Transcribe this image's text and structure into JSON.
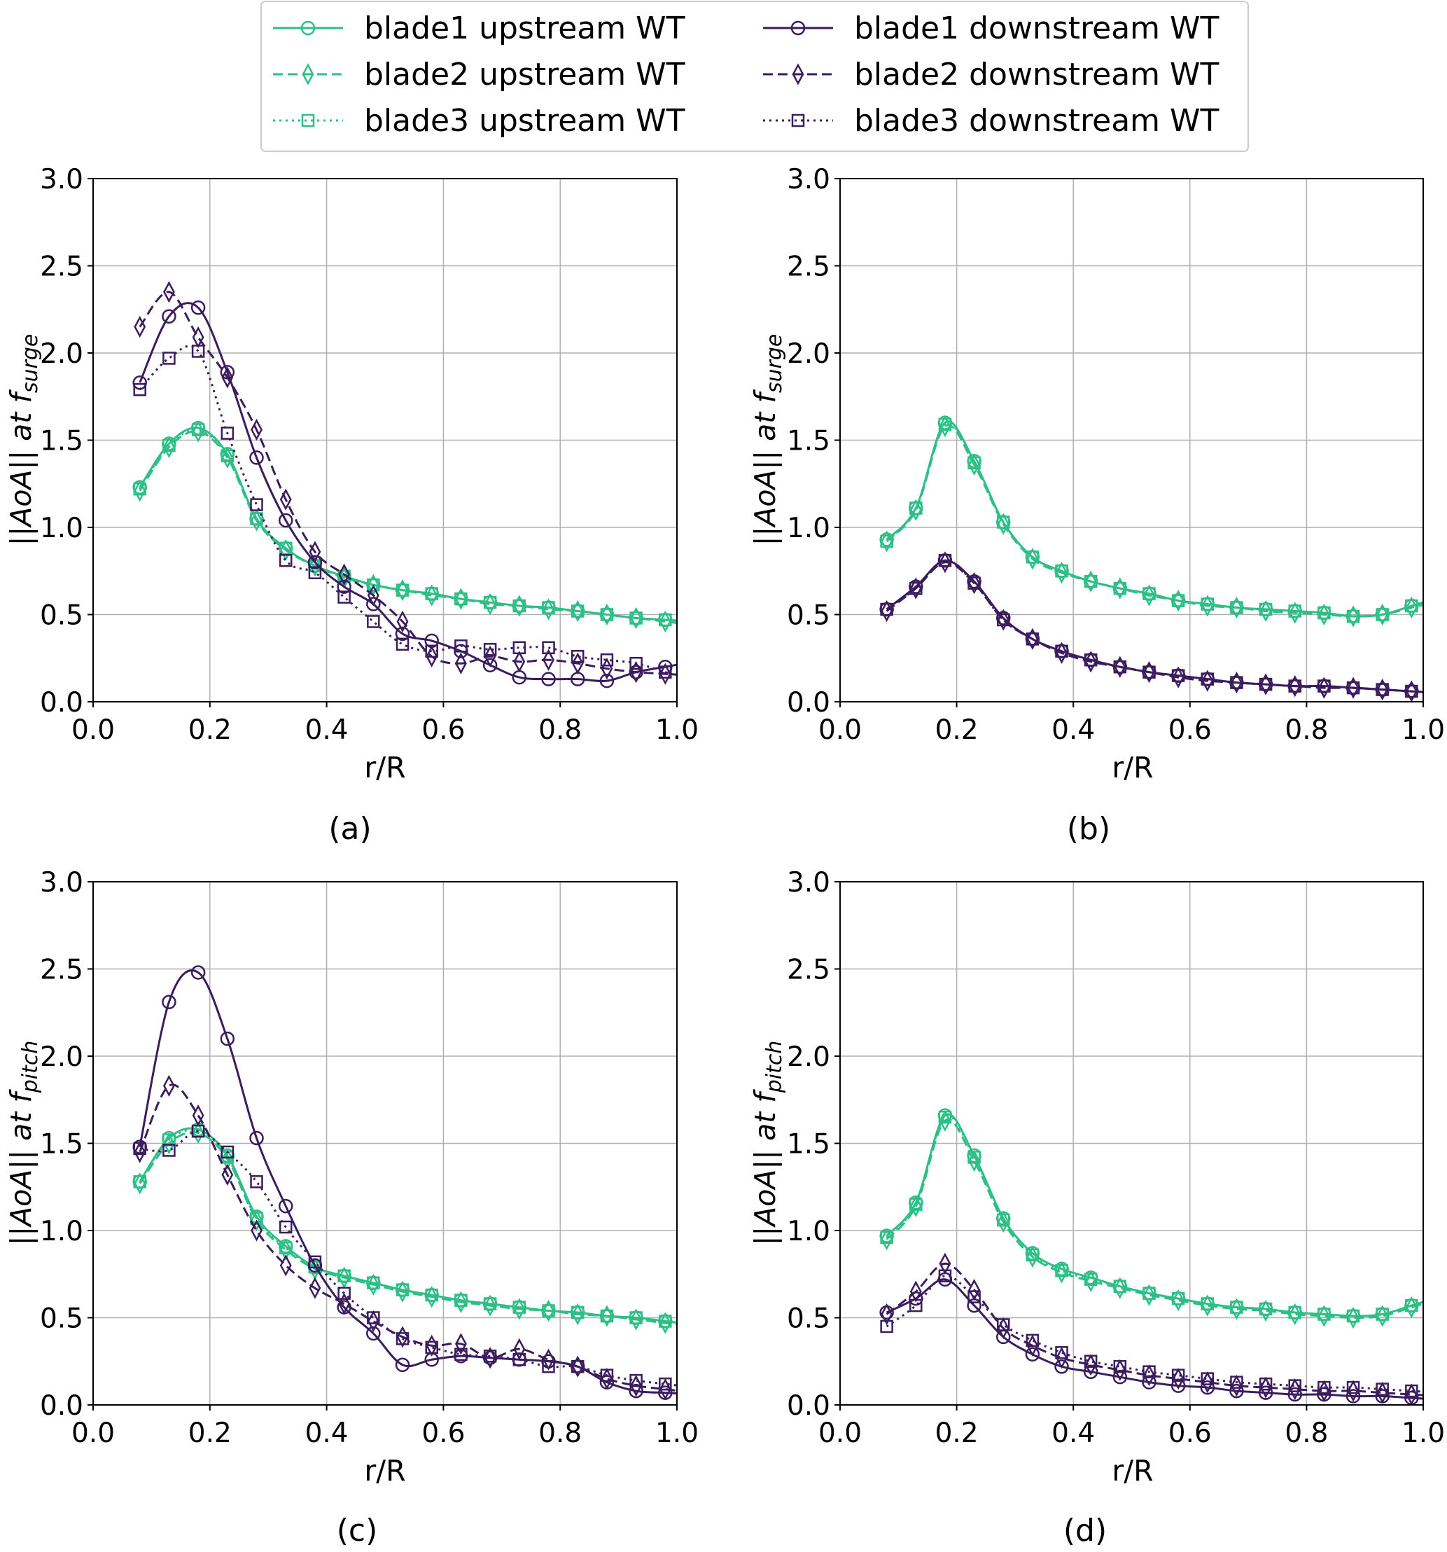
{
  "figure": {
    "colors": {
      "upstream": "#2ebf87",
      "downstream": "#3b1c5e"
    },
    "legend": {
      "entries": [
        {
          "label": "blade1 upstream WT",
          "marker": "circle",
          "style": "solid",
          "group": "upstream"
        },
        {
          "label": "blade2 upstream WT",
          "marker": "diamond",
          "style": "dashed",
          "group": "upstream"
        },
        {
          "label": "blade3 upstream WT",
          "marker": "square",
          "style": "dotted",
          "group": "upstream"
        },
        {
          "label": "blade1 downstream WT",
          "marker": "circle",
          "style": "solid",
          "group": "downstream"
        },
        {
          "label": "blade2 downstream WT",
          "marker": "diamond",
          "style": "dashed",
          "group": "downstream"
        },
        {
          "label": "blade3 downstream WT",
          "marker": "square",
          "style": "dotted",
          "group": "downstream"
        }
      ]
    },
    "panels": [
      {
        "caption": "(a)",
        "xlabel": "r/R",
        "ylabel_main": "||AoA|| at f",
        "ylabel_sub": "surge"
      },
      {
        "caption": "(b)",
        "xlabel": "r/R",
        "ylabel_main": "||AoA|| at f",
        "ylabel_sub": "surge"
      },
      {
        "caption": "(c)",
        "xlabel": "r/R",
        "ylabel_main": "||AoA|| at f",
        "ylabel_sub": "pitch"
      },
      {
        "caption": "(d)",
        "xlabel": "r/R",
        "ylabel_main": "||AoA|| at f",
        "ylabel_sub": "pitch"
      }
    ]
  },
  "chart_data": [
    {
      "type": "line",
      "xlabel": "r/R",
      "ylabel": "||AoA|| at f_surge",
      "xlim": [
        0.0,
        1.0
      ],
      "ylim": [
        0.0,
        3.0
      ],
      "xticks": [
        "0.0",
        "0.2",
        "0.4",
        "0.6",
        "0.8",
        "1.0"
      ],
      "yticks": [
        "0.0",
        "0.5",
        "1.0",
        "1.5",
        "2.0",
        "2.5",
        "3.0"
      ],
      "grid": true,
      "x": [
        0.08,
        0.13,
        0.18,
        0.23,
        0.28,
        0.33,
        0.38,
        0.43,
        0.48,
        0.53,
        0.58,
        0.63,
        0.68,
        0.73,
        0.78,
        0.83,
        0.88,
        0.93,
        0.98
      ],
      "series": [
        {
          "name": "blade1 upstream WT",
          "values": [
            1.23,
            1.48,
            1.57,
            1.42,
            1.05,
            0.88,
            0.78,
            0.72,
            0.67,
            0.64,
            0.62,
            0.59,
            0.57,
            0.55,
            0.54,
            0.52,
            0.5,
            0.48,
            0.47
          ]
        },
        {
          "name": "blade2 upstream WT",
          "values": [
            1.21,
            1.46,
            1.55,
            1.4,
            1.04,
            0.87,
            0.78,
            0.71,
            0.67,
            0.64,
            0.61,
            0.59,
            0.56,
            0.55,
            0.53,
            0.52,
            0.5,
            0.48,
            0.46
          ]
        },
        {
          "name": "blade3 upstream WT",
          "values": [
            1.22,
            1.47,
            1.56,
            1.41,
            1.05,
            0.88,
            0.78,
            0.72,
            0.67,
            0.64,
            0.62,
            0.59,
            0.57,
            0.55,
            0.54,
            0.52,
            0.5,
            0.48,
            0.47
          ]
        },
        {
          "name": "blade1 downstream WT",
          "values": [
            1.83,
            2.21,
            2.26,
            1.89,
            1.4,
            1.04,
            0.8,
            0.66,
            0.56,
            0.39,
            0.35,
            0.29,
            0.21,
            0.14,
            0.13,
            0.13,
            0.12,
            0.17,
            0.2
          ]
        },
        {
          "name": "blade2 downstream WT",
          "values": [
            2.15,
            2.35,
            2.09,
            1.86,
            1.56,
            1.16,
            0.86,
            0.73,
            0.61,
            0.46,
            0.26,
            0.22,
            0.26,
            0.23,
            0.24,
            0.22,
            0.19,
            0.17,
            0.16
          ]
        },
        {
          "name": "blade3 downstream WT",
          "values": [
            1.79,
            1.97,
            2.01,
            1.54,
            1.13,
            0.81,
            0.74,
            0.6,
            0.46,
            0.33,
            0.29,
            0.32,
            0.3,
            0.31,
            0.31,
            0.26,
            0.24,
            0.22,
            0.17
          ]
        }
      ]
    },
    {
      "type": "line",
      "xlabel": "r/R",
      "ylabel": "||AoA|| at f_surge",
      "xlim": [
        0.0,
        1.0
      ],
      "ylim": [
        0.0,
        3.0
      ],
      "xticks": [
        "0.0",
        "0.2",
        "0.4",
        "0.6",
        "0.8",
        "1.0"
      ],
      "yticks": [
        "0.0",
        "0.5",
        "1.0",
        "1.5",
        "2.0",
        "2.5",
        "3.0"
      ],
      "grid": true,
      "x": [
        0.08,
        0.13,
        0.18,
        0.23,
        0.28,
        0.33,
        0.38,
        0.43,
        0.48,
        0.53,
        0.58,
        0.63,
        0.68,
        0.73,
        0.78,
        0.83,
        0.88,
        0.93,
        0.98
      ],
      "series": [
        {
          "name": "blade1 upstream WT",
          "values": [
            0.93,
            1.11,
            1.6,
            1.38,
            1.03,
            0.83,
            0.75,
            0.69,
            0.65,
            0.62,
            0.58,
            0.56,
            0.54,
            0.53,
            0.52,
            0.51,
            0.49,
            0.5,
            0.55
          ]
        },
        {
          "name": "blade2 upstream WT",
          "values": [
            0.92,
            1.1,
            1.58,
            1.36,
            1.02,
            0.82,
            0.74,
            0.69,
            0.65,
            0.61,
            0.58,
            0.55,
            0.54,
            0.52,
            0.51,
            0.5,
            0.49,
            0.5,
            0.54
          ]
        },
        {
          "name": "blade3 upstream WT",
          "values": [
            0.92,
            1.11,
            1.59,
            1.37,
            1.03,
            0.83,
            0.75,
            0.69,
            0.65,
            0.62,
            0.58,
            0.56,
            0.54,
            0.53,
            0.52,
            0.51,
            0.49,
            0.5,
            0.55
          ]
        },
        {
          "name": "blade1 downstream WT",
          "values": [
            0.53,
            0.66,
            0.81,
            0.69,
            0.48,
            0.36,
            0.29,
            0.24,
            0.2,
            0.17,
            0.15,
            0.13,
            0.11,
            0.1,
            0.09,
            0.09,
            0.08,
            0.07,
            0.06
          ]
        },
        {
          "name": "blade2 downstream WT",
          "values": [
            0.52,
            0.65,
            0.8,
            0.68,
            0.47,
            0.36,
            0.28,
            0.23,
            0.2,
            0.17,
            0.14,
            0.12,
            0.11,
            0.1,
            0.09,
            0.08,
            0.08,
            0.07,
            0.06
          ]
        },
        {
          "name": "blade3 downstream WT",
          "values": [
            0.53,
            0.65,
            0.81,
            0.68,
            0.47,
            0.36,
            0.29,
            0.24,
            0.2,
            0.17,
            0.15,
            0.13,
            0.11,
            0.1,
            0.09,
            0.09,
            0.08,
            0.07,
            0.06
          ]
        }
      ]
    },
    {
      "type": "line",
      "xlabel": "r/R",
      "ylabel": "||AoA|| at f_pitch",
      "xlim": [
        0.0,
        1.0
      ],
      "ylim": [
        0.0,
        3.0
      ],
      "xticks": [
        "0.0",
        "0.2",
        "0.4",
        "0.6",
        "0.8",
        "1.0"
      ],
      "yticks": [
        "0.0",
        "0.5",
        "1.0",
        "1.5",
        "2.0",
        "2.5",
        "3.0"
      ],
      "grid": true,
      "x": [
        0.08,
        0.13,
        0.18,
        0.23,
        0.28,
        0.33,
        0.38,
        0.43,
        0.48,
        0.53,
        0.58,
        0.63,
        0.68,
        0.73,
        0.78,
        0.83,
        0.88,
        0.93,
        0.98
      ],
      "series": [
        {
          "name": "blade1 upstream WT",
          "values": [
            1.28,
            1.53,
            1.58,
            1.43,
            1.08,
            0.91,
            0.79,
            0.74,
            0.7,
            0.66,
            0.63,
            0.6,
            0.58,
            0.56,
            0.54,
            0.53,
            0.51,
            0.5,
            0.48
          ]
        },
        {
          "name": "blade2 upstream WT",
          "values": [
            1.27,
            1.5,
            1.56,
            1.41,
            1.06,
            0.89,
            0.78,
            0.73,
            0.69,
            0.65,
            0.62,
            0.59,
            0.57,
            0.55,
            0.54,
            0.52,
            0.51,
            0.49,
            0.47
          ]
        },
        {
          "name": "blade3 upstream WT",
          "values": [
            1.28,
            1.52,
            1.57,
            1.42,
            1.07,
            0.9,
            0.79,
            0.74,
            0.7,
            0.66,
            0.63,
            0.6,
            0.58,
            0.56,
            0.54,
            0.53,
            0.51,
            0.5,
            0.48
          ]
        },
        {
          "name": "blade1 downstream WT",
          "values": [
            1.48,
            2.31,
            2.48,
            2.1,
            1.53,
            1.14,
            0.8,
            0.56,
            0.41,
            0.23,
            0.26,
            0.28,
            0.27,
            0.26,
            0.25,
            0.22,
            0.13,
            0.08,
            0.07
          ]
        },
        {
          "name": "blade2 downstream WT",
          "values": [
            1.45,
            1.83,
            1.66,
            1.32,
            1.0,
            0.8,
            0.67,
            0.58,
            0.48,
            0.39,
            0.34,
            0.35,
            0.27,
            0.32,
            0.26,
            0.22,
            0.15,
            0.11,
            0.09
          ]
        },
        {
          "name": "blade3 downstream WT",
          "values": [
            1.47,
            1.46,
            1.57,
            1.45,
            1.28,
            1.02,
            0.82,
            0.64,
            0.5,
            0.38,
            0.33,
            0.29,
            0.28,
            0.26,
            0.22,
            0.22,
            0.17,
            0.14,
            0.12
          ]
        }
      ]
    },
    {
      "type": "line",
      "xlabel": "r/R",
      "ylabel": "||AoA|| at f_pitch",
      "xlim": [
        0.0,
        1.0
      ],
      "ylim": [
        0.0,
        3.0
      ],
      "xticks": [
        "0.0",
        "0.2",
        "0.4",
        "0.6",
        "0.8",
        "1.0"
      ],
      "yticks": [
        "0.0",
        "0.5",
        "1.0",
        "1.5",
        "2.0",
        "2.5",
        "3.0"
      ],
      "grid": true,
      "x": [
        0.08,
        0.13,
        0.18,
        0.23,
        0.28,
        0.33,
        0.38,
        0.43,
        0.48,
        0.53,
        0.58,
        0.63,
        0.68,
        0.73,
        0.78,
        0.83,
        0.88,
        0.93,
        0.98
      ],
      "series": [
        {
          "name": "blade1 upstream WT",
          "values": [
            0.97,
            1.16,
            1.66,
            1.43,
            1.07,
            0.87,
            0.78,
            0.73,
            0.68,
            0.64,
            0.61,
            0.58,
            0.56,
            0.55,
            0.53,
            0.52,
            0.51,
            0.52,
            0.57
          ]
        },
        {
          "name": "blade2 upstream WT",
          "values": [
            0.95,
            1.14,
            1.63,
            1.4,
            1.05,
            0.85,
            0.76,
            0.71,
            0.67,
            0.63,
            0.6,
            0.57,
            0.55,
            0.54,
            0.52,
            0.51,
            0.5,
            0.51,
            0.56
          ]
        },
        {
          "name": "blade3 upstream WT",
          "values": [
            0.96,
            1.15,
            1.65,
            1.42,
            1.06,
            0.86,
            0.77,
            0.72,
            0.68,
            0.64,
            0.61,
            0.58,
            0.56,
            0.55,
            0.53,
            0.52,
            0.51,
            0.52,
            0.57
          ]
        },
        {
          "name": "blade1 downstream WT",
          "values": [
            0.53,
            0.61,
            0.72,
            0.57,
            0.39,
            0.29,
            0.22,
            0.19,
            0.16,
            0.13,
            0.11,
            0.1,
            0.08,
            0.07,
            0.06,
            0.06,
            0.05,
            0.05,
            0.04
          ]
        },
        {
          "name": "blade2 downstream WT",
          "values": [
            0.52,
            0.65,
            0.81,
            0.66,
            0.44,
            0.34,
            0.27,
            0.23,
            0.2,
            0.17,
            0.15,
            0.13,
            0.11,
            0.1,
            0.09,
            0.08,
            0.08,
            0.07,
            0.06
          ]
        },
        {
          "name": "blade3 downstream WT",
          "values": [
            0.45,
            0.57,
            0.74,
            0.62,
            0.46,
            0.37,
            0.3,
            0.25,
            0.22,
            0.19,
            0.17,
            0.15,
            0.13,
            0.12,
            0.11,
            0.1,
            0.1,
            0.09,
            0.08
          ]
        }
      ]
    }
  ]
}
